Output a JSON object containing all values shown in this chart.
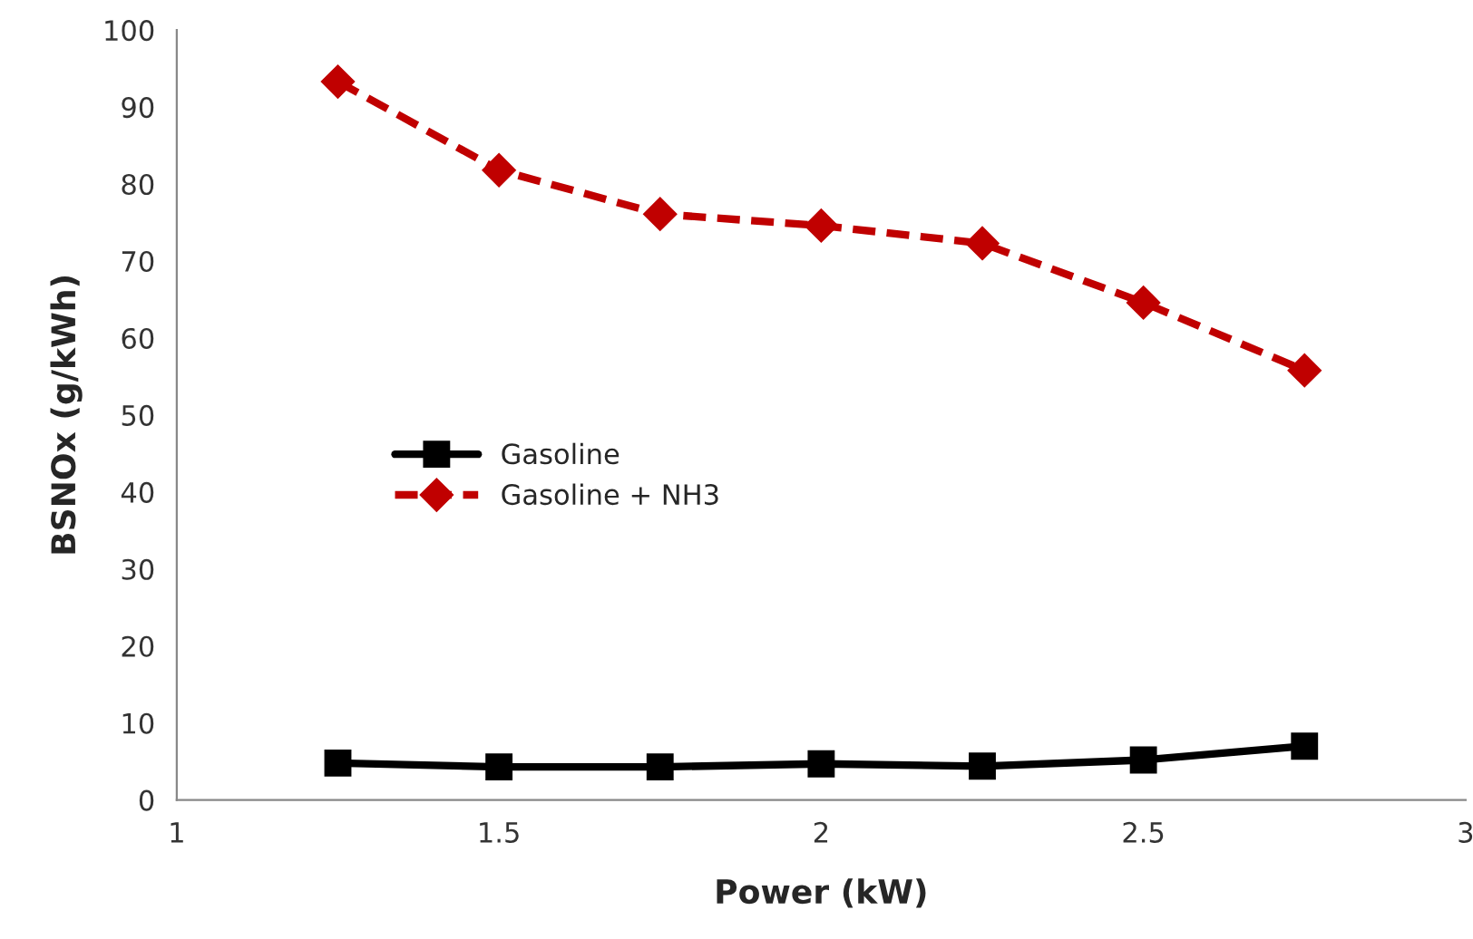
{
  "chart_data": {
    "type": "line",
    "xlabel": "Power (kW)",
    "ylabel": "BSNOx (g/kWh)",
    "x": [
      1.25,
      1.5,
      1.75,
      2,
      2.25,
      2.5,
      2.75
    ],
    "series": [
      {
        "name": "Gasoline",
        "color": "#000000",
        "marker": "square",
        "line_style": "solid",
        "values": [
          4.8,
          4.3,
          4.3,
          4.7,
          4.4,
          5.2,
          7.0
        ]
      },
      {
        "name": "Gasoline + NH3",
        "color": "#c00000",
        "marker": "diamond",
        "line_style": "dashed",
        "values": [
          93.3,
          81.8,
          76.1,
          74.6,
          72.3,
          64.6,
          55.8
        ]
      }
    ],
    "xlim": [
      1,
      3
    ],
    "xticks": [
      1,
      1.5,
      2,
      2.5,
      3
    ],
    "ylim": [
      0,
      100
    ],
    "yticks": [
      0,
      10,
      20,
      30,
      40,
      50,
      60,
      70,
      80,
      90,
      100
    ],
    "grid": false,
    "legend": "left"
  }
}
